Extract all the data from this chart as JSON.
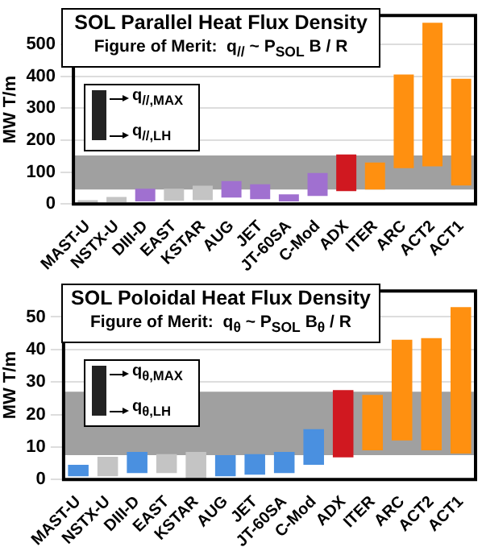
{
  "chart_data": [
    {
      "type": "bar",
      "title": "SOL Parallel Heat Flux Density",
      "subtitle": "Figure of Merit:  q$_{//}$ ~ P$_{SOL}$ B / R",
      "ylabel": "MW T/m",
      "annotations": [
        "q$_{//,MAX}$",
        "q$_{//,LH}$"
      ],
      "categories": [
        "MAST-U",
        "NSTX-U",
        "DIII-D",
        "EAST",
        "KSTAR",
        "AUG",
        "JET",
        "JT-60SA",
        "C-Mod",
        "ADX",
        "ITER",
        "ARC",
        "ACT2",
        "ACT1"
      ],
      "base": [
        3,
        5,
        8,
        10,
        12,
        20,
        15,
        8,
        25,
        40,
        45,
        112,
        118,
        58
      ],
      "values": [
        9,
        17,
        40,
        38,
        45,
        52,
        47,
        22,
        72,
        115,
        85,
        293,
        449,
        334
      ],
      "colors": [
        "#c4c4c4",
        "#c4c4c4",
        "#a070d0",
        "#c4c4c4",
        "#c4c4c4",
        "#a070d0",
        "#a070d0",
        "#a070d0",
        "#a070d0",
        "#d01820",
        "#ff9010",
        "#ff9010",
        "#ff9010",
        "#ff9010"
      ],
      "ylim": [
        0,
        590
      ],
      "yticks": [
        0,
        100,
        200,
        300,
        400,
        500
      ],
      "grid": "y",
      "bands": [
        {
          "axis": "y",
          "from": 45,
          "to": 152,
          "color": "#a0a0a0"
        }
      ]
    },
    {
      "type": "bar",
      "title": "SOL Poloidal Heat Flux Density",
      "subtitle": "Figure of Merit:  q$_{θ}$ ~ P$_{SOL}$ B$_{θ}$ / R",
      "ylabel": "MW T/m",
      "annotations": [
        "q$_{θ,MAX}$",
        "q$_{θ,LH}$"
      ],
      "categories": [
        "MAST-U",
        "NSTX-U",
        "DIII-D",
        "EAST",
        "KSTAR",
        "AUG",
        "JET",
        "JT-60SA",
        "C-Mod",
        "ADX",
        "ITER",
        "ARC",
        "ACT2",
        "ACT1"
      ],
      "base": [
        1,
        1,
        2,
        2,
        0,
        1,
        1.5,
        2,
        4.5,
        6.8,
        9,
        12,
        9,
        8
      ],
      "values": [
        3.5,
        6,
        6.5,
        5.8,
        8.5,
        6.5,
        6.3,
        6.5,
        11,
        20.7,
        17,
        31,
        34.5,
        45
      ],
      "colors": [
        "#4a90e0",
        "#c4c4c4",
        "#4a90e0",
        "#c4c4c4",
        "#c4c4c4",
        "#4a90e0",
        "#4a90e0",
        "#4a90e0",
        "#4a90e0",
        "#d01820",
        "#ff9010",
        "#ff9010",
        "#ff9010",
        "#ff9010"
      ],
      "ylim": [
        0,
        58
      ],
      "yticks": [
        0,
        10,
        20,
        30,
        40,
        50
      ],
      "grid": "y",
      "bands": [
        {
          "axis": "y",
          "from": 7.5,
          "to": 27,
          "color": "#a0a0a0"
        }
      ]
    }
  ]
}
